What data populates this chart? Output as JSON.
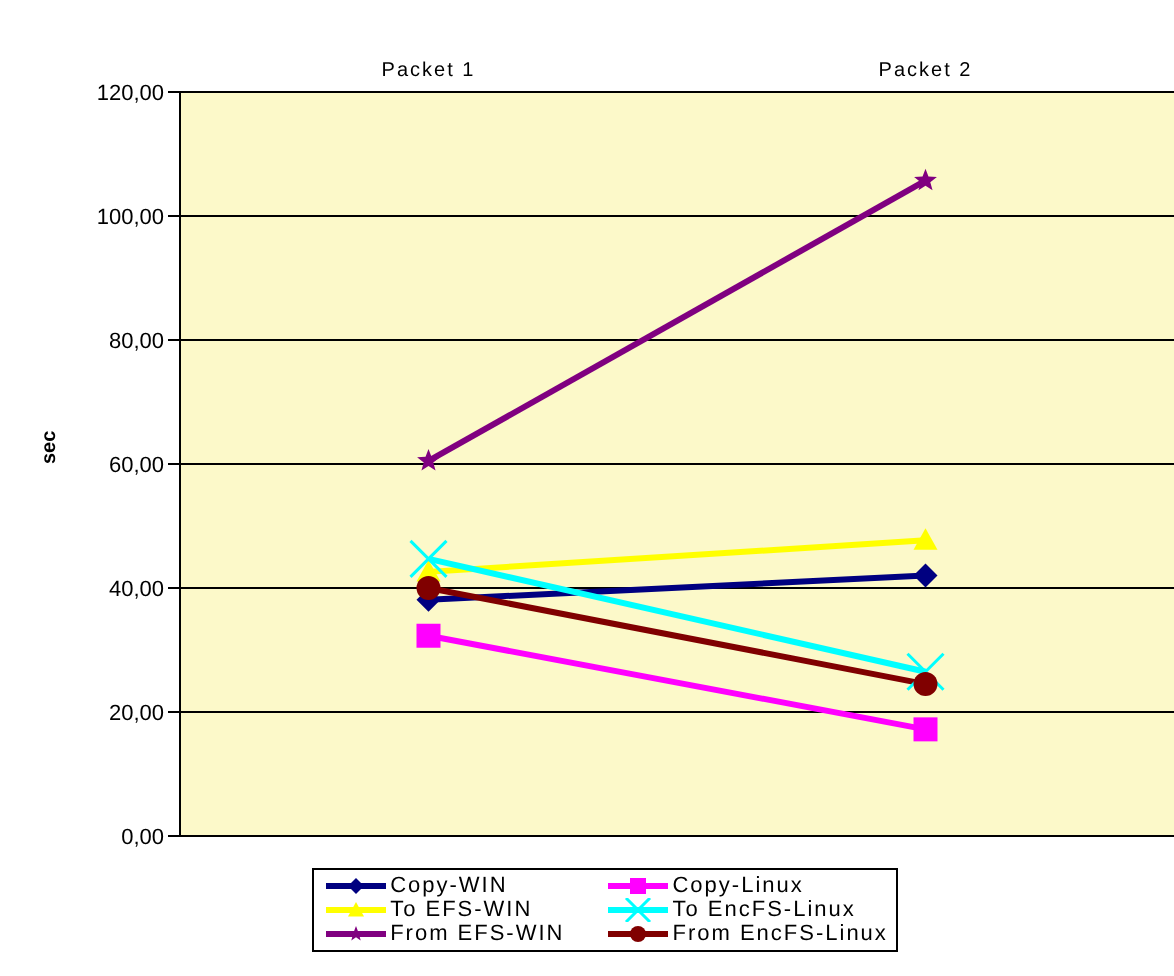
{
  "chart_data": {
    "type": "line",
    "categories": [
      "Packet 1",
      "Packet 2"
    ],
    "ylabel": "sec",
    "ylim": [
      0,
      120
    ],
    "yticks": [
      {
        "value": 0,
        "label": "0,00"
      },
      {
        "value": 20,
        "label": "20,00"
      },
      {
        "value": 40,
        "label": "40,00"
      },
      {
        "value": 60,
        "label": "60,00"
      },
      {
        "value": 80,
        "label": "80,00"
      },
      {
        "value": 100,
        "label": "100,00"
      },
      {
        "value": 120,
        "label": "120,00"
      }
    ],
    "grid": "y",
    "legend": "bottom",
    "series": [
      {
        "name": "Copy-WIN",
        "color": "#000080",
        "marker": "diamond",
        "values": [
          38.1,
          42
        ]
      },
      {
        "name": "Copy-Linux",
        "color": "#ff00ff",
        "marker": "square",
        "values": [
          32.3,
          17.2
        ]
      },
      {
        "name": "To EFS-WIN",
        "color": "#ffff00",
        "marker": "triangle",
        "values": [
          42.6,
          47.7
        ]
      },
      {
        "name": "To EncFS-Linux",
        "color": "#00ffff",
        "marker": "cross",
        "values": [
          44.7,
          26.5
        ]
      },
      {
        "name": "From EFS-WIN",
        "color": "#800080",
        "marker": "star",
        "values": [
          60.5,
          105.7
        ]
      },
      {
        "name": "From EncFS-Linux",
        "color": "#800000",
        "marker": "circle",
        "values": [
          40,
          24.5
        ]
      }
    ]
  }
}
